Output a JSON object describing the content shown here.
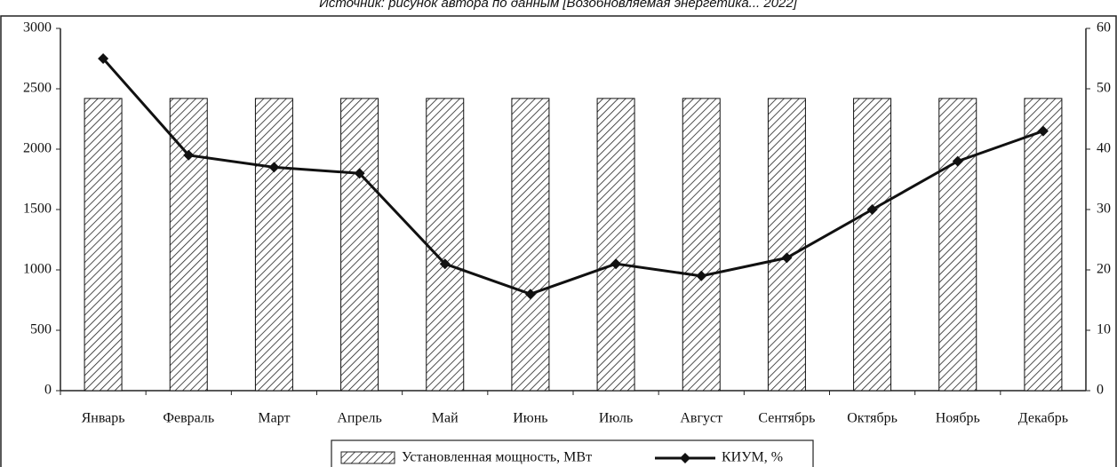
{
  "chart_data": {
    "type": "bar_line",
    "caption": "Источник: рисунок автора по данным [Возобновляемая энергетика... 2022]",
    "categories": [
      "Январь",
      "Февраль",
      "Март",
      "Апрель",
      "Май",
      "Июнь",
      "Июль",
      "Август",
      "Сентябрь",
      "Октябрь",
      "Ноябрь",
      "Декабрь"
    ],
    "series": [
      {
        "name": "Установленная мощность, МВт",
        "color": "#111111",
        "type": "bar",
        "values": [
          2420,
          2420,
          2420,
          2420,
          2420,
          2420,
          2420,
          2420,
          2420,
          2420,
          2420,
          2420
        ]
      },
      {
        "name": "КИУМ, %",
        "color": "#111111",
        "type": "line",
        "axis": "y2",
        "values": [
          55,
          39,
          37,
          36,
          21,
          16,
          21,
          19,
          22,
          30,
          38,
          43
        ]
      }
    ],
    "ylim": [
      0,
      3000
    ],
    "yticks": [
      0,
      500,
      1000,
      1500,
      2000,
      2500,
      3000
    ],
    "y2lim": [
      0,
      60
    ],
    "y2ticks": [
      0,
      10,
      20,
      30,
      40,
      50,
      60
    ]
  }
}
